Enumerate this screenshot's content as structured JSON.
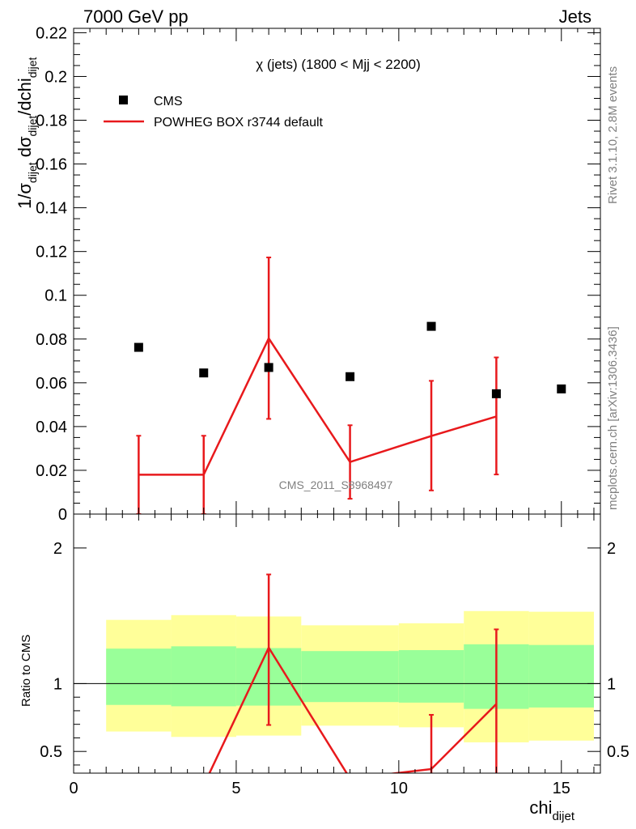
{
  "header": {
    "left": "7000 GeV pp",
    "right": "Jets"
  },
  "side": {
    "rivet": "Rivet 3.1.10,  2.8M events",
    "mcplots": "mcplots.cern.ch [arXiv:1306.3436]"
  },
  "chart_data": [
    {
      "type": "scatter",
      "title": "χ (jets) (1800 < Mjj < 2200)",
      "watermark": "CMS_2011_S8968497",
      "ylabel": {
        "main": "1/σ",
        "sub1": "dijet",
        "mid": " dσ",
        "sub2": "dijet",
        "tail": "/dchi",
        "sub3": "dijet"
      },
      "xlim": [
        0,
        16.2
      ],
      "ylim": [
        0,
        0.222
      ],
      "yticks": [
        0,
        0.02,
        0.04,
        0.06,
        0.08,
        0.1,
        0.12,
        0.14,
        0.16,
        0.18,
        0.2,
        0.22
      ],
      "ytick_labels": [
        "0",
        "0.02",
        "0.04",
        "0.06",
        "0.08",
        "0.1",
        "0.12",
        "0.14",
        "0.16",
        "0.18",
        "0.2",
        "0.22"
      ],
      "legend_position": "top-left",
      "series": [
        {
          "name": "CMS",
          "kind": "points",
          "color": "#000000",
          "x": [
            2,
            4,
            6,
            8.5,
            11,
            13,
            15
          ],
          "y": [
            0.0762,
            0.0645,
            0.067,
            0.0628,
            0.0858,
            0.055,
            0.0572
          ]
        },
        {
          "name": "POWHEG BOX r3744 default",
          "kind": "step-line",
          "color": "#e8191c",
          "x": [
            2,
            4,
            6,
            8.5,
            11,
            13
          ],
          "xlow": [
            1,
            3,
            5,
            7,
            10,
            12
          ],
          "xhigh": [
            3,
            5,
            7,
            10,
            12,
            14
          ],
          "y": [
            0.018,
            0.018,
            0.0803,
            0.0238,
            0.0357,
            0.0446
          ],
          "err_low": [
            0.018,
            0.018,
            0.0368,
            0.0168,
            0.0249,
            0.0265
          ],
          "err_high": [
            0.0178,
            0.0178,
            0.037,
            0.0168,
            0.0252,
            0.027
          ]
        }
      ]
    },
    {
      "type": "scatter",
      "ylabel": "Ratio to CMS",
      "xlabel": {
        "main": "chi",
        "sub": "dijet"
      },
      "xlim": [
        0,
        16.2
      ],
      "ylim": [
        0.34,
        2.25
      ],
      "xticks": [
        0,
        5,
        10,
        15
      ],
      "xtick_labels": [
        "0",
        "5",
        "10",
        "15"
      ],
      "yticks": [
        0.5,
        1,
        2
      ],
      "ytick_labels": [
        "0.5",
        "1",
        "2"
      ],
      "bands": {
        "xlow": [
          1,
          3,
          5,
          7,
          10,
          12,
          14
        ],
        "xhigh": [
          3,
          5,
          7,
          10,
          12,
          14,
          16
        ],
        "yellow_low": [
          0.647,
          0.607,
          0.617,
          0.69,
          0.678,
          0.567,
          0.58
        ],
        "yellow_high": [
          1.47,
          1.505,
          1.495,
          1.43,
          1.445,
          1.535,
          1.53
        ],
        "green_low": [
          0.843,
          0.833,
          0.838,
          0.864,
          0.86,
          0.814,
          0.824
        ],
        "green_high": [
          1.258,
          1.275,
          1.262,
          1.24,
          1.247,
          1.29,
          1.285
        ],
        "yellow_color": "#ffff99",
        "green_color": "#99ff99"
      },
      "reference_line": 1,
      "ratio_series": {
        "color": "#e8191c",
        "x": [
          4,
          6,
          8.5,
          11,
          13
        ],
        "y": [
          0.25,
          1.265,
          0.3,
          0.37,
          0.85
        ],
        "err_low": [
          0,
          0.57,
          0,
          0.1,
          0.55
        ],
        "err_high": [
          0,
          0.54,
          0,
          0.4,
          0.55
        ]
      }
    }
  ]
}
